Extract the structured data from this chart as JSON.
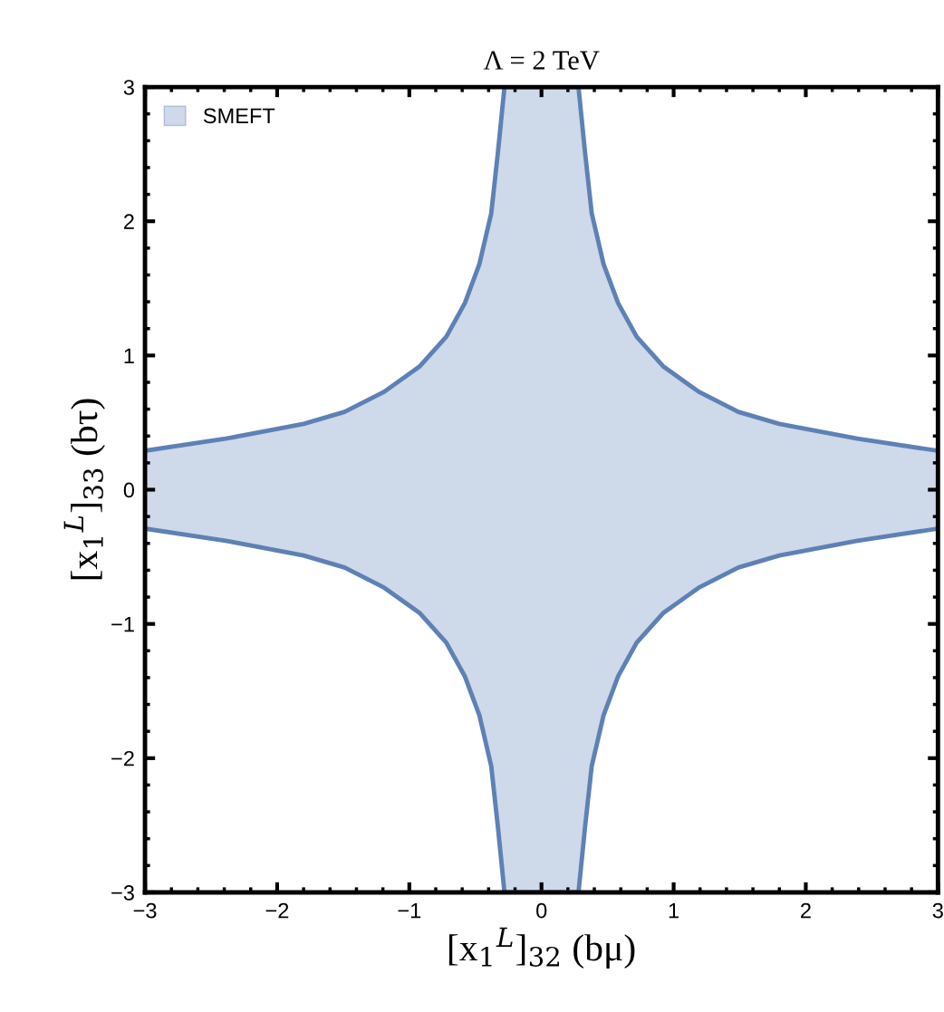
{
  "chart_data": {
    "type": "area",
    "title": "Λ = 2 TeV",
    "xlabel": "[x$_{1}$$^{L}$]$_{32}$ (bμ)",
    "ylabel": "[x$_{1}$$^{L}$]$_{33}$ (bτ)",
    "x": [
      -3,
      -2.39,
      -1.8,
      -1.49,
      -1.19,
      -0.92,
      -0.72,
      -0.58,
      -0.47,
      -0.38,
      -0.33,
      -0.28,
      0.28,
      0.33,
      0.38,
      0.47,
      0.58,
      0.72,
      0.92,
      1.19,
      1.49,
      1.8,
      2.39,
      3
    ],
    "series": [
      {
        "name": "SMEFT",
        "color": "#5e81b5",
        "values": [
          0.29,
          0.38,
          0.49,
          0.58,
          0.73,
          0.92,
          1.14,
          1.39,
          1.68,
          2.06,
          2.51,
          3,
          3,
          2.51,
          2.06,
          1.68,
          1.39,
          1.14,
          0.92,
          0.73,
          0.58,
          0.49,
          0.38,
          0.29
        ]
      },
      {
        "color": "#5e81b5",
        "values": [
          -0.29,
          -0.38,
          -0.49,
          -0.58,
          -0.73,
          -0.92,
          -1.14,
          -1.39,
          -1.68,
          -2.06,
          -2.51,
          -3,
          -3,
          -2.51,
          -2.06,
          -1.68,
          -1.39,
          -1.14,
          -0.92,
          -0.73,
          -0.58,
          -0.49,
          -0.38,
          -0.29
        ]
      }
    ],
    "xlim": [
      -3,
      3
    ],
    "ylim": [
      -3,
      3
    ],
    "xticks": [
      -3,
      -2,
      -1,
      0,
      1,
      2,
      3
    ],
    "yticks": [
      -3,
      -2,
      -1,
      0,
      1,
      2,
      3
    ],
    "grid": false,
    "legend": "top left"
  }
}
